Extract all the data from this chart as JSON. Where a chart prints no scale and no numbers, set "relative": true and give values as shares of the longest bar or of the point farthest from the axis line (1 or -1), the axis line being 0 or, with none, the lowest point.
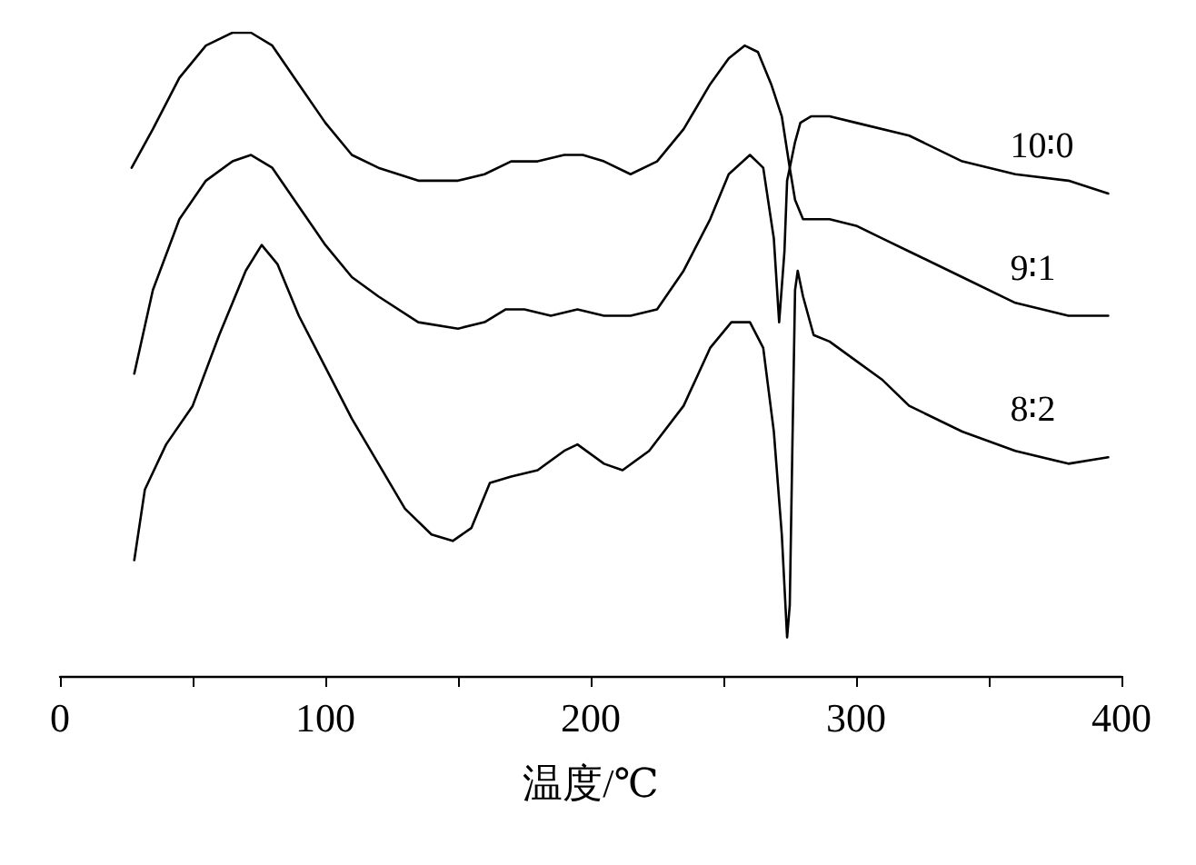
{
  "chart_data": {
    "type": "line",
    "relative": true,
    "xlabel": "温度/℃",
    "xlim": [
      0,
      400
    ],
    "xticks": [
      0,
      {
        "value": 50,
        "label": null
      },
      100,
      {
        "value": 150,
        "label": null
      },
      200,
      {
        "value": 250,
        "label": null
      },
      300,
      {
        "value": 350,
        "label": null
      },
      400
    ],
    "marker": "none",
    "line_style": "solid",
    "grid": false,
    "legend": false,
    "tick_labels": "x",
    "series": [
      {
        "name": "10∶0",
        "color": "#000000",
        "x": [
          27,
          35,
          45,
          55,
          65,
          72,
          80,
          90,
          100,
          110,
          120,
          135,
          150,
          160,
          170,
          180,
          190,
          197,
          205,
          215,
          225,
          235,
          245,
          252,
          258,
          263,
          268,
          272,
          275,
          277,
          279,
          283,
          290,
          300,
          320,
          340,
          360,
          380,
          395
        ],
        "values": [
          0.79,
          0.85,
          0.93,
          0.98,
          1.0,
          1.0,
          0.98,
          0.92,
          0.86,
          0.81,
          0.79,
          0.77,
          0.77,
          0.78,
          0.8,
          0.8,
          0.81,
          0.81,
          0.8,
          0.78,
          0.8,
          0.85,
          0.92,
          0.96,
          0.98,
          0.97,
          0.92,
          0.87,
          0.79,
          0.83,
          0.86,
          0.87,
          0.87,
          0.86,
          0.84,
          0.8,
          0.78,
          0.77,
          0.75
        ]
      },
      {
        "name": "9∶1",
        "color": "#000000",
        "x": [
          28,
          35,
          45,
          55,
          65,
          72,
          80,
          90,
          100,
          110,
          120,
          135,
          150,
          160,
          168,
          175,
          185,
          195,
          205,
          215,
          225,
          235,
          245,
          252,
          260,
          265,
          269,
          271,
          273,
          274,
          275,
          277,
          280,
          290,
          300,
          310,
          320,
          340,
          360,
          380,
          395
        ],
        "values": [
          0.47,
          0.6,
          0.71,
          0.77,
          0.8,
          0.81,
          0.79,
          0.73,
          0.67,
          0.62,
          0.59,
          0.55,
          0.54,
          0.55,
          0.57,
          0.57,
          0.56,
          0.57,
          0.56,
          0.56,
          0.57,
          0.63,
          0.71,
          0.78,
          0.81,
          0.79,
          0.68,
          0.55,
          0.66,
          0.77,
          0.79,
          0.74,
          0.71,
          0.71,
          0.7,
          0.68,
          0.66,
          0.62,
          0.58,
          0.56,
          0.56
        ]
      },
      {
        "name": "8∶2",
        "color": "#000000",
        "x": [
          28,
          32,
          40,
          50,
          60,
          70,
          76,
          82,
          90,
          100,
          110,
          120,
          130,
          140,
          148,
          155,
          162,
          170,
          180,
          190,
          195,
          205,
          212,
          222,
          235,
          245,
          253,
          260,
          265,
          269,
          272,
          274,
          275,
          276,
          277,
          278,
          280,
          284,
          290,
          300,
          310,
          320,
          340,
          360,
          380,
          395
        ],
        "values": [
          0.18,
          0.29,
          0.36,
          0.42,
          0.53,
          0.63,
          0.67,
          0.64,
          0.56,
          0.48,
          0.4,
          0.33,
          0.26,
          0.22,
          0.21,
          0.23,
          0.3,
          0.31,
          0.32,
          0.35,
          0.36,
          0.33,
          0.32,
          0.35,
          0.42,
          0.51,
          0.55,
          0.55,
          0.51,
          0.38,
          0.22,
          0.06,
          0.11,
          0.36,
          0.6,
          0.63,
          0.59,
          0.53,
          0.52,
          0.49,
          0.46,
          0.42,
          0.38,
          0.35,
          0.33,
          0.34
        ]
      }
    ]
  }
}
